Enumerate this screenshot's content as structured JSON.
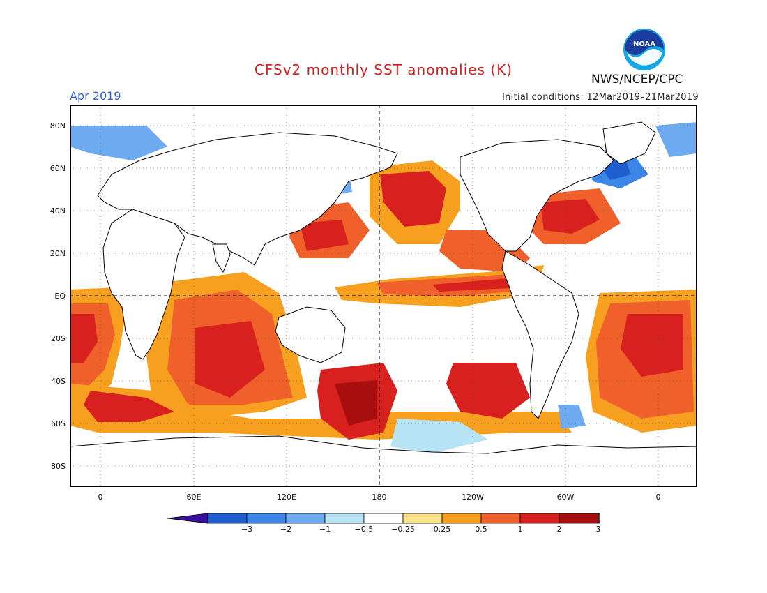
{
  "header": {
    "title": "CFSv2 monthly SST anomalies (K)",
    "valid_month": "Apr 2019",
    "initial_conditions": "Initial conditions: 12Mar2019–21Mar2019",
    "agency": "NWS/NCEP/CPC",
    "logo_text": "NOAA"
  },
  "axes": {
    "lat_labels": [
      "80N",
      "60N",
      "40N",
      "20N",
      "EQ",
      "20S",
      "40S",
      "60S",
      "80S"
    ],
    "lon_labels": [
      "0",
      "60E",
      "120E",
      "180",
      "120W",
      "60W",
      "0"
    ]
  },
  "colorbar": {
    "labels": [
      "−3",
      "−2",
      "−1",
      "−0.5",
      "−0.25",
      "0.25",
      "0.5",
      "1",
      "2",
      "3"
    ],
    "colors": [
      "#3a0fa0",
      "#1e5fd0",
      "#3b86e6",
      "#6eaaf0",
      "#b6e4f4",
      "#ffffff",
      "#fbe28a",
      "#f7a020",
      "#f0602a",
      "#d8201e",
      "#a80e0e",
      "#6a4a3c"
    ]
  }
}
